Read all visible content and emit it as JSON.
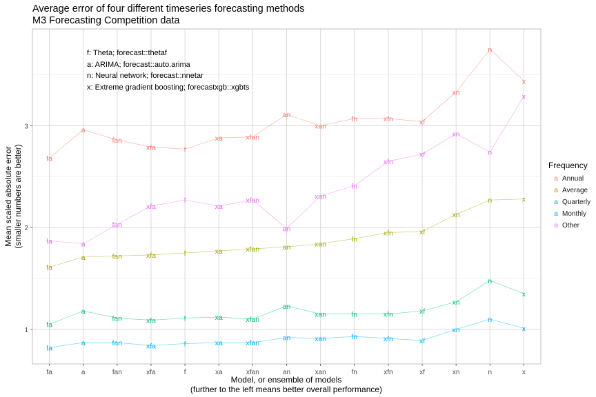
{
  "chart_data": {
    "type": "line",
    "title": "Average error of four different timeseries forecasting methods",
    "subtitle": "M3 Forecasting Competition data",
    "xlabel": "Model, or ensemble of models",
    "xlabel_sub": "(further to the left means better overall performance)",
    "ylabel": "Mean scaled absolute error",
    "ylabel_sub": "(smaller numbers are better)",
    "categories": [
      "fa",
      "a",
      "fan",
      "xfa",
      "f",
      "xa",
      "xfan",
      "an",
      "xan",
      "fn",
      "xfn",
      "xf",
      "xn",
      "n",
      "x"
    ],
    "ylim": [
      0.66,
      3.95
    ],
    "yticks": [
      1,
      2,
      3
    ],
    "grid": true,
    "legend_title": "Frequency",
    "legend_position": "right",
    "annotations": [
      "f: Theta; forecast::thetaf",
      "a: ARIMA; forecast::auto.arima",
      "n: Neural network; forecast::nnetar",
      "x: Extreme gradient boosting; forecastxgb::xgbts"
    ],
    "series": [
      {
        "name": "Annual",
        "color": "#F8766D",
        "values": [
          2.68,
          2.96,
          2.86,
          2.79,
          2.77,
          2.88,
          2.89,
          3.11,
          3.0,
          3.07,
          3.07,
          3.04,
          3.33,
          3.75,
          3.44
        ]
      },
      {
        "name": "Average",
        "color": "#A3A500",
        "values": [
          1.61,
          1.71,
          1.72,
          1.73,
          1.75,
          1.77,
          1.79,
          1.81,
          1.84,
          1.89,
          1.95,
          1.96,
          2.13,
          2.27,
          2.28
        ]
      },
      {
        "name": "Quarterly",
        "color": "#00BF7D",
        "values": [
          1.05,
          1.18,
          1.11,
          1.09,
          1.11,
          1.12,
          1.1,
          1.23,
          1.15,
          1.15,
          1.15,
          1.18,
          1.27,
          1.48,
          1.35
        ]
      },
      {
        "name": "Monthly",
        "color": "#00B0F6",
        "values": [
          0.82,
          0.87,
          0.87,
          0.84,
          0.86,
          0.87,
          0.87,
          0.92,
          0.91,
          0.93,
          0.91,
          0.89,
          1.0,
          1.1,
          1.01
        ]
      },
      {
        "name": "Other",
        "color": "#E76BF3",
        "values": [
          1.87,
          1.84,
          2.03,
          2.21,
          2.27,
          2.21,
          2.27,
          1.99,
          2.31,
          2.41,
          2.65,
          2.72,
          2.92,
          2.74,
          3.29
        ]
      }
    ]
  }
}
